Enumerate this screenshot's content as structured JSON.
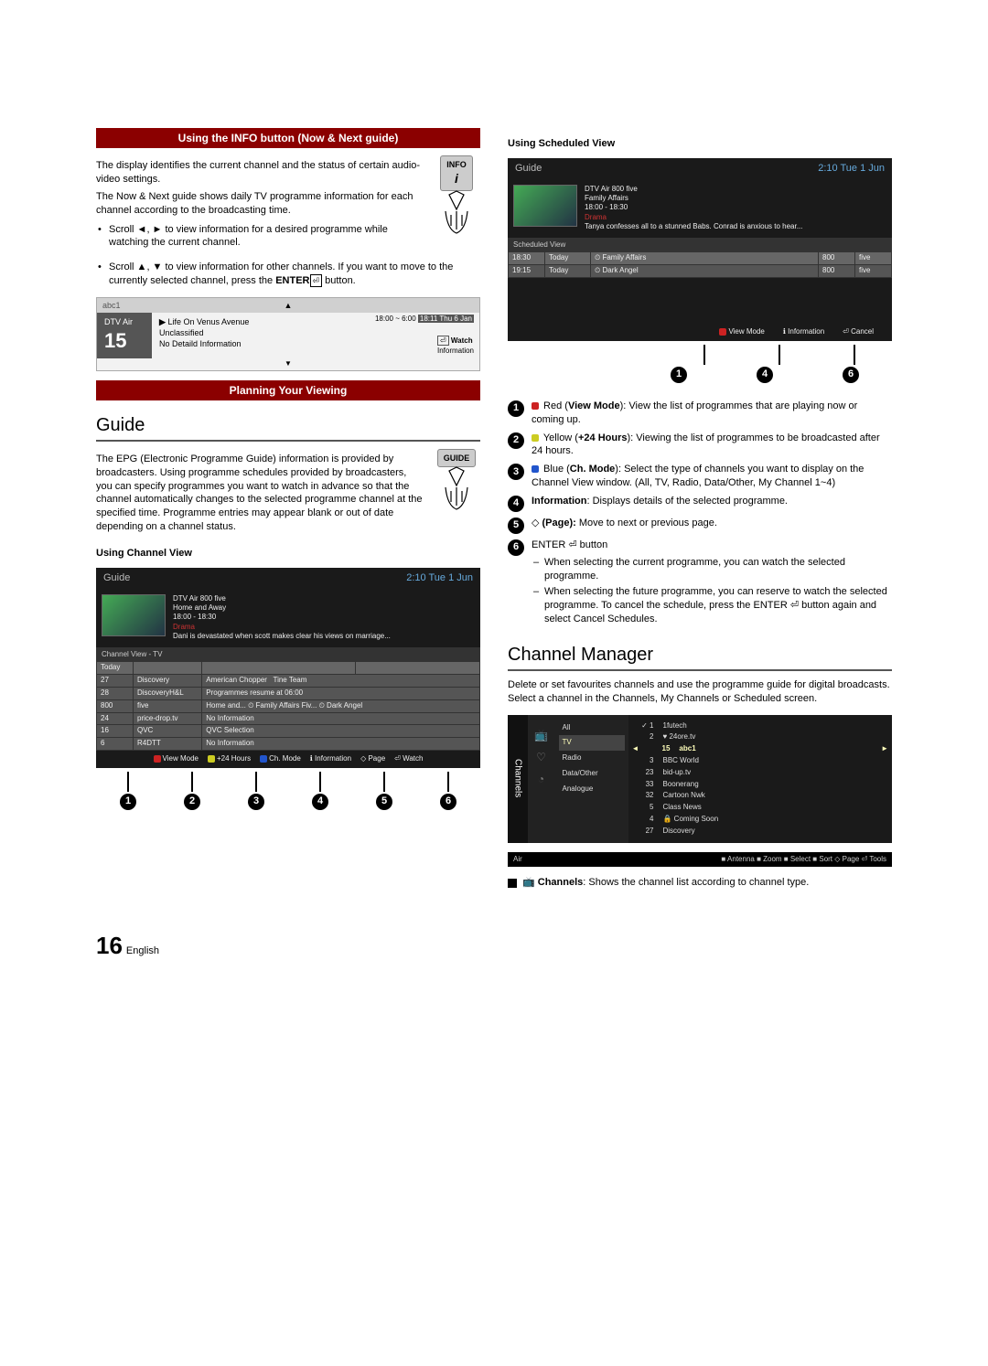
{
  "left": {
    "sec1_title": "Using the INFO button (Now & Next guide)",
    "p1": "The display identifies the current channel and the status of certain audio-video settings.",
    "p2": "The Now & Next guide shows daily TV programme information for each channel according to the broadcasting time.",
    "info_key": "INFO",
    "b1a": "Scroll ◄, ► to view information for a desired programme while watching the current channel.",
    "b2a": "Scroll ▲, ▼ to view information for other channels. If you want to move to the currently selected channel, press the ",
    "b2b": "ENTER",
    "b2c": " button.",
    "osd": {
      "ch": "abc1",
      "src": "DTV Air",
      "no": "15",
      "prog": "Life On Venus Avenue",
      "rating": "Unclassified",
      "detail": "No Detaild Information",
      "time": "18:00 ~ 6:00",
      "date": "18:11 Thu 6 Jan",
      "watch": "Watch",
      "info": "Information"
    },
    "sec2_title": "Planning Your Viewing",
    "h2_guide": "Guide",
    "guide_key": "GUIDE",
    "guide_p1": "The EPG (Electronic Programme Guide) information is provided by broadcasters. Using programme schedules provided by broadcasters, you can specify programmes you want to watch in advance so that the channel automatically changes to the selected programme channel at the specified time. Programme entries may appear blank or out of date depending on a channel status.",
    "ucv": "Using Channel View",
    "cv": {
      "title": "Guide",
      "clock": "2:10 Tue 1 Jun",
      "src": "DTV Air 800 five",
      "prog": "Home and Away",
      "time": "18:00 - 18:30",
      "genre": "Drama",
      "synopsis": "Dani is devastated when scott makes clear his views on marriage...",
      "tab": "Channel View - TV",
      "hdr": [
        "Today",
        "",
        ""
      ],
      "rows": [
        [
          "27",
          "Discovery",
          "American Chopper",
          "Tine Team"
        ],
        [
          "28",
          "DiscoveryH&L",
          "Programmes resume at 06:00",
          ""
        ],
        [
          "800",
          "five",
          "Home and...   ⏲ Family Affairs   Fiv...   ⏲ Dark Angel",
          ""
        ],
        [
          "24",
          "price-drop.tv",
          "No Information",
          ""
        ],
        [
          "16",
          "QVC",
          "QVC Selection",
          ""
        ],
        [
          "6",
          "R4DTT",
          "No Information",
          ""
        ]
      ],
      "footer": [
        "■ View Mode",
        "■ +24 Hours",
        "■ Ch. Mode",
        "ℹ Information",
        "◇ Page",
        "⏎ Watch"
      ],
      "nums": [
        "1",
        "2",
        "3",
        "4",
        "5",
        "6"
      ]
    }
  },
  "right": {
    "usv": "Using Scheduled View",
    "sv": {
      "title": "Guide",
      "clock": "2:10 Tue 1 Jun",
      "src": "DTV Air 800 five",
      "prog": "Family Affairs",
      "time": "18:00 - 18:30",
      "genre": "Drama",
      "synopsis": "Tanya confesses all to a stunned Babs. Conrad is anxious to hear...",
      "tab": "Scheduled View",
      "rows": [
        [
          "18:30",
          "Today",
          "⏲ Family Affairs",
          "800",
          "five"
        ],
        [
          "19:15",
          "Today",
          "⏲ Dark Angel",
          "800",
          "five"
        ]
      ],
      "footer": [
        "■ View Mode",
        "ℹ Information",
        "⏎ Cancel"
      ],
      "nums": [
        "1",
        "4",
        "6"
      ]
    },
    "items": [
      {
        "n": "1",
        "pre": "■ ",
        "t1": "Red (",
        "b": "View Mode",
        "t2": "): View the list of programmes that are playing now or coming up.",
        "color": "#c22"
      },
      {
        "n": "2",
        "pre": "■ ",
        "t1": "Yellow (",
        "b": "+24 Hours",
        "t2": "): Viewing the list of programmes to be broadcasted after 24 hours.",
        "color": "#cc2"
      },
      {
        "n": "3",
        "pre": "■ ",
        "t1": "Blue (",
        "b": "Ch. Mode",
        "t2": "): Select the type of channels you want to display on the Channel View window. (All, TV, Radio, Data/Other, My Channel 1~4)",
        "color": "#25c"
      },
      {
        "n": "4",
        "pre": "",
        "t1": "",
        "b": "Information",
        "t2": ": Displays details of the selected programme."
      },
      {
        "n": "5",
        "pre": "",
        "t1": "◇ ",
        "b": "(Page):",
        "t2": " Move to next or previous page."
      },
      {
        "n": "6",
        "pre": "",
        "t1": "ENTER ⏎ button",
        "b": "",
        "t2": ""
      }
    ],
    "sub6": [
      "When selecting the current programme, you can watch the selected programme.",
      "When selecting the future programme, you can reserve to watch the selected programme. To cancel the schedule, press the ENTER ⏎ button again and select Cancel Schedules."
    ],
    "h2_cm": "Channel Manager",
    "cm_p": "Delete or set favourites channels and use the programme guide for digital broadcasts. Select a channel in the Channels, My Channels or Scheduled screen.",
    "cm": {
      "side": "Channels",
      "cats": [
        "All",
        "TV",
        "Radio",
        "Data/Other",
        "Analogue"
      ],
      "sel_cat_idx": 1,
      "list": [
        [
          "✓ 1",
          "1futech"
        ],
        [
          "2",
          "♥ 24ore.tv"
        ],
        [
          "15",
          "abc1"
        ],
        [
          "3",
          "BBC World"
        ],
        [
          "23",
          "bid-up.tv"
        ],
        [
          "33",
          "Boonerang"
        ],
        [
          "32",
          "Cartoon Nwk"
        ],
        [
          "5",
          "Class News"
        ],
        [
          "4",
          "🔒 Coming Soon"
        ],
        [
          "27",
          "Discovery"
        ]
      ],
      "sel_row_idx": 2,
      "air": "Air",
      "footer": "■ Antenna ■ Zoom ■ Select ■ Sort ◇ Page ⏎ Tools"
    },
    "cm_note_b": "Channels",
    "cm_note": ": Shows the channel list according to channel type."
  },
  "pageno": "16",
  "lang": "English"
}
